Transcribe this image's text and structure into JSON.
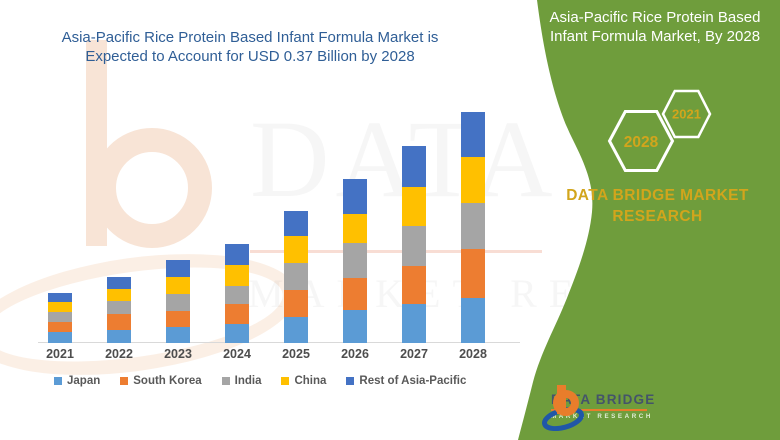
{
  "header": {
    "title_line1": "Asia-Pacific Rice Protein Based Infant Formula Market is",
    "title_line2": "Expected to Account for USD 0.37 Billion by 2028"
  },
  "panel": {
    "title_line1": "Asia-Pacific Rice Protein Based",
    "title_line2": "Infant Formula Market, By 2028",
    "hexagons": {
      "back_year": "2021",
      "front_year": "2028"
    },
    "brand_line1": "DATA BRIDGE MARKET",
    "brand_line2": "RESEARCH"
  },
  "logo": {
    "name": "DATA BRIDGE",
    "subtitle": "MARKET RESEARCH"
  },
  "watermark": {
    "text_top": "DATA BRI",
    "text_bottom": "MARKET RESE"
  },
  "colors": {
    "background_green": "#6F9D3C",
    "accent_gold": "#D2A51C",
    "title_blue": "#2F5E96",
    "logo_orange": "#E87D2B",
    "logo_blue": "#2057A7"
  },
  "chart_data": {
    "type": "bar",
    "stacked": true,
    "title": "Asia-Pacific Rice Protein Based Infant Formula Market is Expected to Account for USD 0.37 Billion by 2028",
    "unit": "USD billion",
    "values_estimated": true,
    "highlight_total_2028": 0.37,
    "categories": [
      "2021",
      "2022",
      "2023",
      "2024",
      "2025",
      "2026",
      "2027",
      "2028"
    ],
    "series": [
      {
        "name": "Japan",
        "color": "#5B9BD5",
        "values": [
          0.018,
          0.021,
          0.026,
          0.03,
          0.042,
          0.053,
          0.062,
          0.072
        ]
      },
      {
        "name": "South Korea",
        "color": "#ED7D31",
        "values": [
          0.016,
          0.026,
          0.026,
          0.032,
          0.043,
          0.051,
          0.061,
          0.078
        ]
      },
      {
        "name": "India",
        "color": "#A5A5A5",
        "values": [
          0.016,
          0.021,
          0.027,
          0.029,
          0.043,
          0.056,
          0.064,
          0.074
        ]
      },
      {
        "name": "China",
        "color": "#FFC000",
        "values": [
          0.016,
          0.019,
          0.027,
          0.034,
          0.043,
          0.046,
          0.062,
          0.074
        ]
      },
      {
        "name": "Rest of Asia-Pacific",
        "color": "#4472C4",
        "values": [
          0.014,
          0.019,
          0.027,
          0.034,
          0.04,
          0.056,
          0.066,
          0.072
        ]
      }
    ],
    "xlabel": "",
    "ylabel": "",
    "ylim": [
      0,
      0.4
    ],
    "gridlines": false,
    "legend_position": "bottom"
  }
}
